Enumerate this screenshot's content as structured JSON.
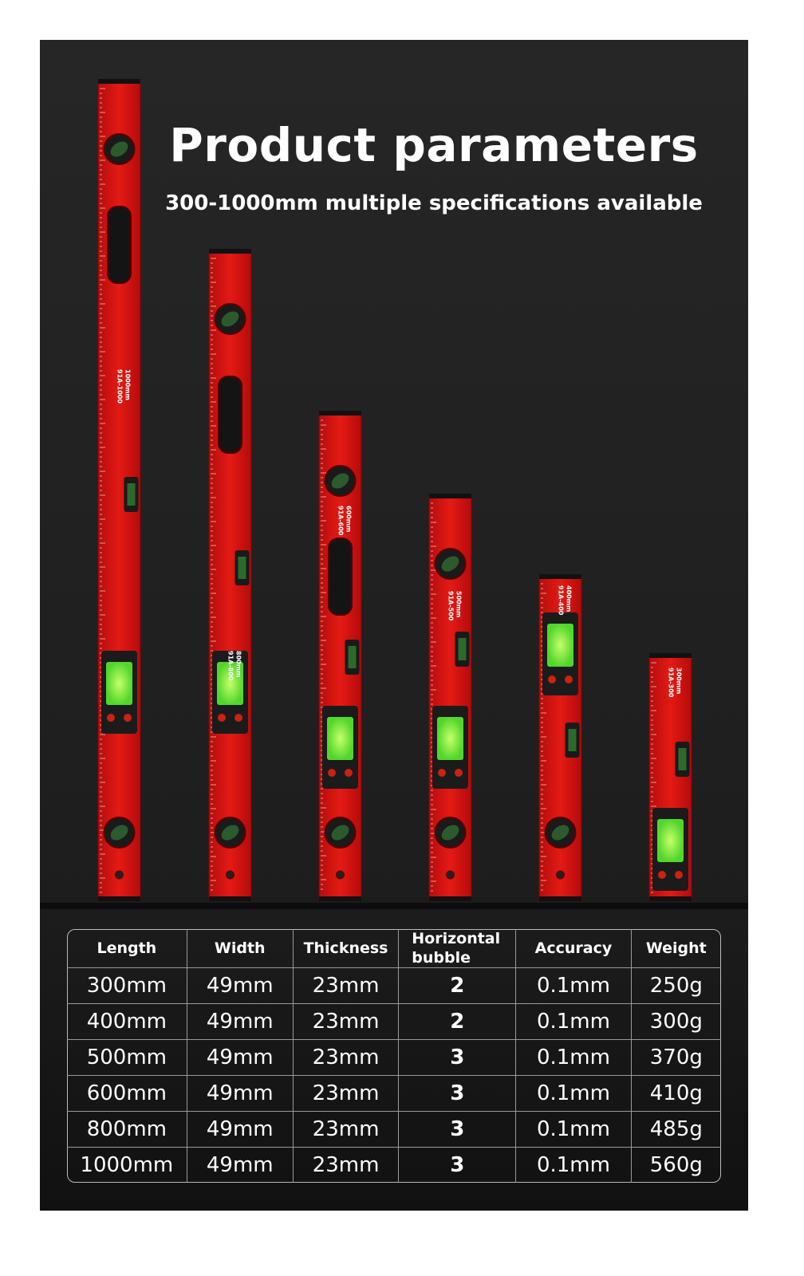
{
  "header": {
    "title": "Product parameters",
    "subtitle": "300-1000mm multiple specifications available"
  },
  "levels": [
    {
      "size": "1000mm",
      "model": "91A-1000"
    },
    {
      "size": "800mm",
      "model": "91A-800"
    },
    {
      "size": "600mm",
      "model": "91A-600"
    },
    {
      "size": "500mm",
      "model": "91A-500"
    },
    {
      "size": "400mm",
      "model": "91A-400"
    },
    {
      "size": "300mm",
      "model": "91A-300"
    }
  ],
  "table": {
    "columns": [
      "Length",
      "Width",
      "Thickness",
      "Horizontal bubble",
      "Accuracy",
      "Weight"
    ],
    "rows": [
      [
        "300mm",
        "49mm",
        "23mm",
        "2",
        "0.1mm",
        "250g"
      ],
      [
        "400mm",
        "49mm",
        "23mm",
        "2",
        "0.1mm",
        "300g"
      ],
      [
        "500mm",
        "49mm",
        "23mm",
        "3",
        "0.1mm",
        "370g"
      ],
      [
        "600mm",
        "49mm",
        "23mm",
        "3",
        "0.1mm",
        "410g"
      ],
      [
        "800mm",
        "49mm",
        "23mm",
        "3",
        "0.1mm",
        "485g"
      ],
      [
        "1000mm",
        "49mm",
        "23mm",
        "3",
        "0.1mm",
        "560g"
      ]
    ]
  }
}
